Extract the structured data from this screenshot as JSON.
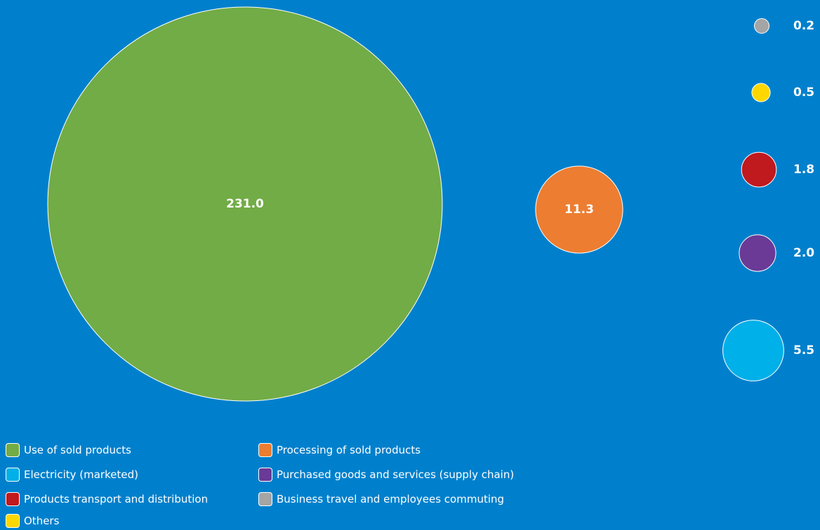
{
  "chart_data": {
    "type": "bubble",
    "unit": "",
    "series": [
      {
        "name": "Use of sold products",
        "value": 231.0,
        "label": "231.0",
        "color": "#72AC46"
      },
      {
        "name": "Processing of sold products",
        "value": 11.3,
        "label": "11.3",
        "color": "#ED7D31"
      },
      {
        "name": "Electricity (marketed)",
        "value": 5.5,
        "label": "5.5",
        "color": "#00B0E8"
      },
      {
        "name": "Purchased goods and services (supply chain)",
        "value": 2.0,
        "label": "2.0",
        "color": "#6A3A96"
      },
      {
        "name": "Products transport and distribution",
        "value": 1.8,
        "label": "1.8",
        "color": "#C0191E"
      },
      {
        "name": "Others",
        "value": 0.5,
        "label": "0.5",
        "color": "#FFD700"
      },
      {
        "name": "Business travel and employees commuting",
        "value": 0.2,
        "label": "0.2",
        "color": "#A5A5A5"
      }
    ]
  },
  "legend": [
    {
      "label": "Use of sold products",
      "color": "#72AC46"
    },
    {
      "label": "Processing of sold products",
      "color": "#ED7D31"
    },
    {
      "label": "Electricity (marketed)",
      "color": "#00B0E8"
    },
    {
      "label": "Purchased goods and services (supply chain)",
      "color": "#6A3A96"
    },
    {
      "label": "Products transport and distribution",
      "color": "#C0191E"
    },
    {
      "label": "Business travel and employees commuting",
      "color": "#A5A5A5"
    },
    {
      "label": "Others",
      "color": "#FFD700"
    }
  ],
  "colors": {
    "background": "#0080CC",
    "outline": "#FFFFFF"
  }
}
